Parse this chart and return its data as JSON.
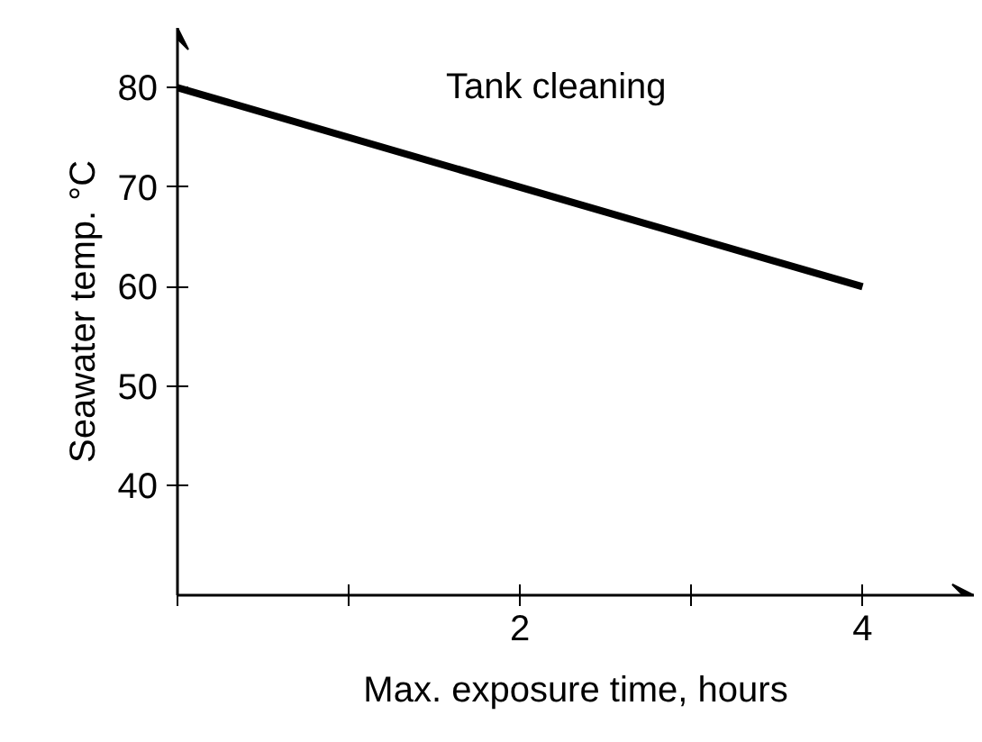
{
  "chart_data": {
    "type": "line",
    "xlabel": "Max. exposure time, hours",
    "ylabel": "Seawater temp. °C",
    "x": [
      0,
      4
    ],
    "series": [
      {
        "name": "Tank cleaning",
        "color": "#000000",
        "values": [
          80,
          60
        ]
      }
    ],
    "xlim": [
      0,
      4.65
    ],
    "ylim": [
      29,
      86
    ],
    "xticks": [
      {
        "value": 0,
        "label": null
      },
      {
        "value": 1,
        "label": null
      },
      2,
      {
        "value": 3,
        "label": null
      },
      4
    ],
    "yticks": [
      40,
      50,
      60,
      70,
      80
    ],
    "grid": false,
    "marker": "none",
    "line_style": "solid"
  }
}
